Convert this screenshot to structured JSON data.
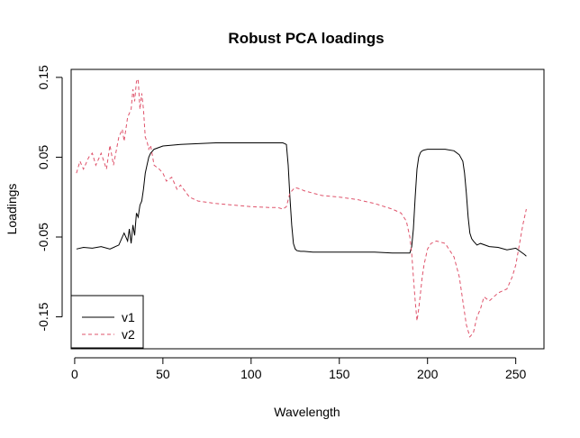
{
  "chart_data": {
    "type": "line",
    "title": "Robust PCA loadings",
    "xlabel": "Wavelength",
    "ylabel": "Loadings",
    "xlim": [
      -2,
      266
    ],
    "ylim": [
      -0.19,
      0.16
    ],
    "xticks": [
      0,
      50,
      100,
      150,
      200,
      250
    ],
    "yticks": [
      -0.15,
      -0.05,
      0.05,
      0.15
    ],
    "ytick_labels": [
      "-0.15",
      "-0.05",
      "0.05",
      "0.15"
    ],
    "grid": false,
    "legend_position": "bottom-left",
    "series": [
      {
        "name": "v1",
        "color": "#000000",
        "dash": "solid",
        "x": [
          1,
          5,
          10,
          15,
          20,
          25,
          28,
          30,
          31,
          32,
          33,
          34,
          35,
          36,
          37,
          38,
          39,
          40,
          41,
          42,
          43,
          45,
          50,
          55,
          60,
          70,
          80,
          90,
          100,
          110,
          118,
          120,
          121,
          122,
          123,
          124,
          125,
          126,
          128,
          130,
          135,
          140,
          150,
          160,
          170,
          180,
          185,
          190,
          191,
          192,
          193,
          194,
          195,
          196,
          197,
          198,
          200,
          205,
          210,
          215,
          218,
          220,
          221,
          222,
          223,
          224,
          225,
          226,
          228,
          230,
          235,
          240,
          245,
          250,
          255,
          256
        ],
        "y": [
          -0.065,
          -0.063,
          -0.064,
          -0.062,
          -0.065,
          -0.06,
          -0.045,
          -0.055,
          -0.04,
          -0.058,
          -0.035,
          -0.048,
          -0.02,
          -0.025,
          -0.01,
          -0.005,
          0.01,
          0.03,
          0.04,
          0.05,
          0.055,
          0.06,
          0.064,
          0.065,
          0.066,
          0.067,
          0.068,
          0.068,
          0.068,
          0.068,
          0.068,
          0.066,
          0.04,
          0.0,
          -0.035,
          -0.058,
          -0.065,
          -0.067,
          -0.068,
          -0.068,
          -0.069,
          -0.069,
          -0.069,
          -0.069,
          -0.069,
          -0.07,
          -0.07,
          -0.07,
          -0.062,
          -0.04,
          0.0,
          0.035,
          0.05,
          0.056,
          0.058,
          0.059,
          0.06,
          0.06,
          0.06,
          0.058,
          0.053,
          0.045,
          0.03,
          0.005,
          -0.025,
          -0.045,
          -0.052,
          -0.055,
          -0.06,
          -0.058,
          -0.062,
          -0.063,
          -0.066,
          -0.064,
          -0.072,
          -0.074
        ]
      },
      {
        "name": "v2",
        "color": "#DF536B",
        "dash": "dashed",
        "x": [
          1,
          3,
          5,
          8,
          10,
          12,
          15,
          18,
          20,
          22,
          25,
          27,
          28,
          30,
          32,
          33,
          34,
          35,
          36,
          37,
          38,
          39,
          40,
          41,
          42,
          43,
          45,
          48,
          50,
          52,
          55,
          58,
          60,
          65,
          70,
          80,
          90,
          100,
          110,
          115,
          118,
          120,
          122,
          124,
          125,
          128,
          130,
          140,
          150,
          160,
          170,
          180,
          185,
          188,
          190,
          191,
          192,
          193,
          194,
          195,
          196,
          197,
          198,
          200,
          202,
          205,
          210,
          215,
          218,
          220,
          222,
          224,
          226,
          228,
          230,
          232,
          235,
          240,
          245,
          248,
          250,
          252,
          254,
          256
        ],
        "y": [
          0.03,
          0.045,
          0.035,
          0.05,
          0.055,
          0.04,
          0.055,
          0.035,
          0.065,
          0.04,
          0.075,
          0.085,
          0.07,
          0.1,
          0.11,
          0.135,
          0.12,
          0.145,
          0.148,
          0.11,
          0.13,
          0.11,
          0.075,
          0.07,
          0.06,
          0.065,
          0.04,
          0.035,
          0.03,
          0.02,
          0.025,
          0.01,
          0.015,
          0.0,
          -0.005,
          -0.008,
          -0.01,
          -0.012,
          -0.013,
          -0.013,
          -0.015,
          -0.012,
          0.005,
          0.01,
          0.012,
          0.01,
          0.008,
          0.002,
          0.0,
          -0.003,
          -0.008,
          -0.015,
          -0.02,
          -0.03,
          -0.05,
          -0.07,
          -0.1,
          -0.13,
          -0.155,
          -0.14,
          -0.12,
          -0.1,
          -0.085,
          -0.065,
          -0.058,
          -0.055,
          -0.058,
          -0.075,
          -0.1,
          -0.13,
          -0.16,
          -0.175,
          -0.17,
          -0.15,
          -0.14,
          -0.125,
          -0.13,
          -0.12,
          -0.115,
          -0.1,
          -0.085,
          -0.06,
          -0.035,
          -0.015
        ]
      }
    ]
  }
}
